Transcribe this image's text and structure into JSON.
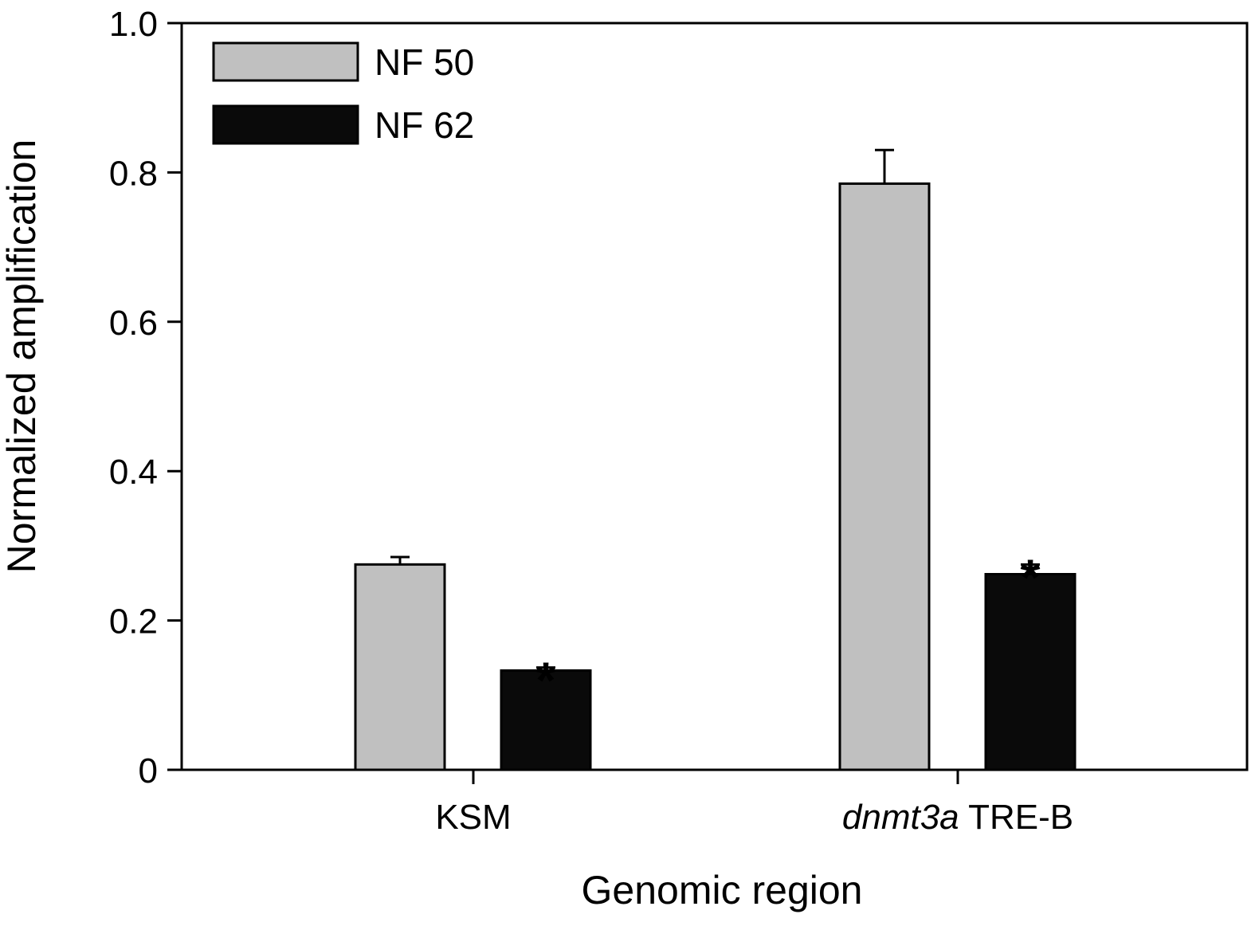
{
  "chart_data": {
    "type": "bar",
    "title": "",
    "xlabel": "Genomic region",
    "ylabel": "Normalized amplification",
    "ylim": [
      0,
      1.0
    ],
    "yticks": [
      0,
      0.2,
      0.4,
      0.6,
      0.8,
      1.0
    ],
    "ytick_labels": [
      "0",
      "0.2",
      "0.4",
      "0.6",
      "0.8",
      "1.0"
    ],
    "categories": [
      {
        "italic": "",
        "plain": "KSM"
      },
      {
        "italic": "dnmt3a",
        "plain": " TRE-B"
      }
    ],
    "series": [
      {
        "name": "NF 50",
        "color": "#c0c0c0",
        "values": [
          0.275,
          0.785
        ],
        "errors": [
          0.01,
          0.045
        ],
        "significant": [
          false,
          false
        ]
      },
      {
        "name": "NF 62",
        "color": "#0a0a0a",
        "values": [
          0.133,
          0.262
        ],
        "errors": [
          0.004,
          0.013
        ],
        "significant": [
          true,
          true
        ]
      }
    ],
    "significance_marker": "*",
    "legend_position": "top-left"
  }
}
